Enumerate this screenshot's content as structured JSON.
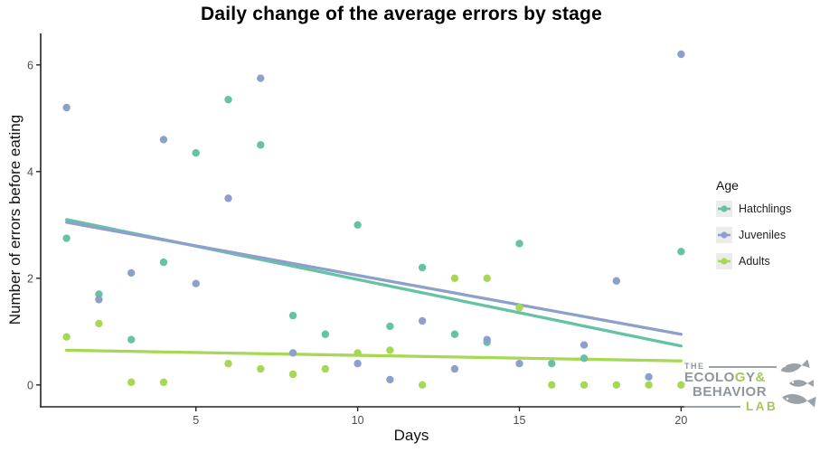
{
  "chart_data": {
    "type": "scatter",
    "title": "Daily change of the average errors by stage",
    "xlabel": "Days",
    "ylabel": "Number of errors before eating",
    "x_ticks": [
      5,
      10,
      15,
      20
    ],
    "y_ticks": [
      0,
      2,
      4,
      6
    ],
    "xlim": [
      0.2,
      20.8
    ],
    "ylim": [
      -0.41,
      6.59
    ],
    "grid": false,
    "legend_position": "right",
    "series": [
      {
        "name": "Hatchlings",
        "color": "#66C2A5",
        "points": [
          [
            1,
            2.75
          ],
          [
            2,
            1.7
          ],
          [
            3,
            0.85
          ],
          [
            4,
            2.3
          ],
          [
            5,
            4.35
          ],
          [
            6,
            5.35
          ],
          [
            7,
            4.5
          ],
          [
            8,
            1.3
          ],
          [
            9,
            0.95
          ],
          [
            10,
            3.0
          ],
          [
            11,
            1.1
          ],
          [
            12,
            2.2
          ],
          [
            13,
            0.95
          ],
          [
            14,
            0.8
          ],
          [
            15,
            2.65
          ],
          [
            16,
            0.4
          ],
          [
            17,
            0.5
          ],
          [
            20,
            2.5
          ]
        ],
        "trend": [
          [
            1,
            3.1
          ],
          [
            20,
            0.73
          ]
        ]
      },
      {
        "name": "Juveniles",
        "color": "#8DA0CB",
        "points": [
          [
            1,
            5.2
          ],
          [
            2,
            1.6
          ],
          [
            3,
            2.1
          ],
          [
            4,
            4.6
          ],
          [
            5,
            1.9
          ],
          [
            6,
            3.5
          ],
          [
            7,
            5.75
          ],
          [
            8,
            0.6
          ],
          [
            10,
            0.4
          ],
          [
            11,
            0.1
          ],
          [
            12,
            1.2
          ],
          [
            13,
            0.3
          ],
          [
            14,
            0.85
          ],
          [
            15,
            0.4
          ],
          [
            17,
            0.75
          ],
          [
            18,
            1.95
          ],
          [
            19,
            0.15
          ],
          [
            20,
            6.2
          ]
        ],
        "trend": [
          [
            1,
            3.05
          ],
          [
            20,
            0.95
          ]
        ]
      },
      {
        "name": "Adults",
        "color": "#A6D854",
        "points": [
          [
            1,
            0.9
          ],
          [
            2,
            1.15
          ],
          [
            3,
            0.05
          ],
          [
            4,
            0.05
          ],
          [
            6,
            0.4
          ],
          [
            7,
            0.3
          ],
          [
            8,
            0.2
          ],
          [
            9,
            0.3
          ],
          [
            10,
            0.6
          ],
          [
            11,
            0.65
          ],
          [
            12,
            0.0
          ],
          [
            13,
            2.0
          ],
          [
            14,
            2.0
          ],
          [
            15,
            1.45
          ],
          [
            16,
            0.0
          ],
          [
            17,
            0.0
          ],
          [
            18,
            0.0
          ],
          [
            19,
            0.0
          ],
          [
            20,
            0.0
          ]
        ],
        "trend": [
          [
            1,
            0.65
          ],
          [
            20,
            0.45
          ]
        ]
      }
    ]
  },
  "legend": {
    "title": "Age",
    "items": [
      {
        "label": "Hatchlings",
        "color": "#66C2A5"
      },
      {
        "label": "Juveniles",
        "color": "#8DA0CB"
      },
      {
        "label": "Adults",
        "color": "#A6D854"
      }
    ]
  },
  "logo": {
    "the": "THE",
    "ecolo": "ECOLO",
    "g": "G",
    "y": "Y",
    "amp": "&",
    "behavior": "BEHAVIOR",
    "lab": "LAB",
    "gray_color": "#8F969C",
    "green_color": "#A4C755"
  },
  "colors": {
    "axis": "#222222",
    "tick_label": "#4d4d4d",
    "background": "#ffffff"
  }
}
